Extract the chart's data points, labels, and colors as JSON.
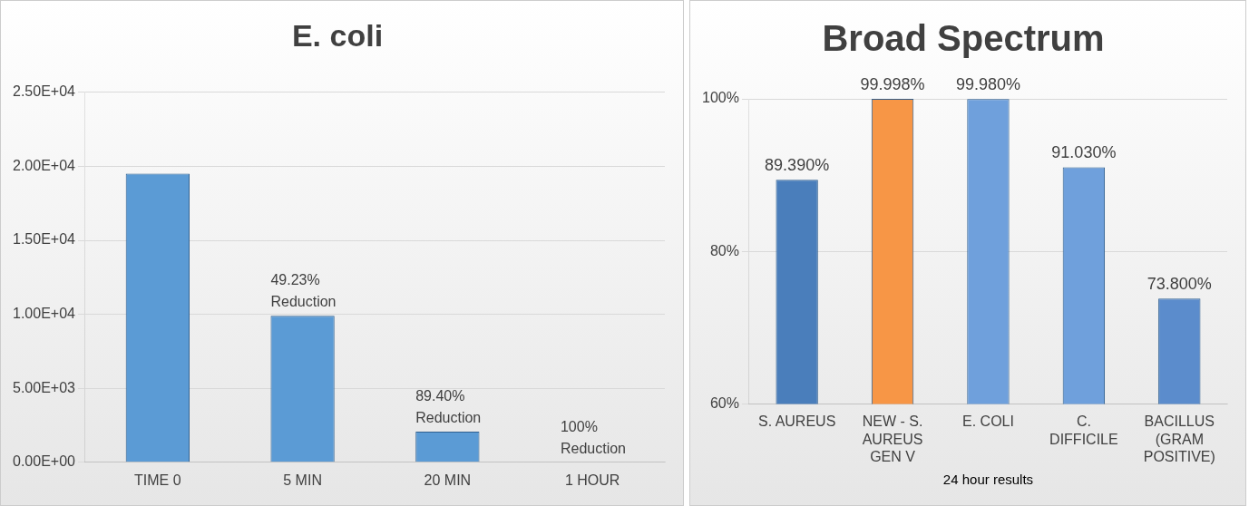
{
  "chart_data": [
    {
      "type": "bar",
      "title": "E. coli",
      "categories": [
        "TIME 0",
        "5 MIN",
        "20 MIN",
        "1 HOUR"
      ],
      "values": [
        19500,
        9900,
        2070,
        0
      ],
      "color": "#5b9bd5",
      "ylim": [
        0,
        25000
      ],
      "yticks": [
        {
          "value": 0,
          "label": "0.00E+00"
        },
        {
          "value": 5000,
          "label": "5.00E+03"
        },
        {
          "value": 10000,
          "label": "1.00E+04"
        },
        {
          "value": 15000,
          "label": "1.50E+04"
        },
        {
          "value": 20000,
          "label": "2.00E+04"
        },
        {
          "value": 25000,
          "label": "2.50E+04"
        }
      ],
      "grid": "y",
      "annotations": [
        {
          "text": "49.23% Reduction",
          "x": "5 MIN",
          "y": 9900
        },
        {
          "text": "89.40% Reduction",
          "x": "20 MIN",
          "y": 2070
        },
        {
          "text": "100% Reduction",
          "x": "1 HOUR",
          "y": 0
        }
      ]
    },
    {
      "type": "bar",
      "title": "Broad Spectrum",
      "xlabel": "24 hour results",
      "categories": [
        "S. AUREUS",
        "NEW - S. AUREUS GEN V",
        "E. COLI",
        "C. DIFFICILE",
        "BACILLUS (GRAM POSITIVE)"
      ],
      "values": [
        89.39,
        99.998,
        99.98,
        91.03,
        73.8
      ],
      "colors": [
        "#4a7ebb",
        "#f79646",
        "#6fa0dc",
        "#6fa0dc",
        "#5b8ccc"
      ],
      "ylim": [
        60,
        100
      ],
      "yticks": [
        {
          "value": 60,
          "label": "60%"
        },
        {
          "value": 80,
          "label": "80%"
        },
        {
          "value": 100,
          "label": "100%"
        }
      ],
      "grid": "y",
      "value_labels": [
        "89.390%",
        "99.998%",
        "99.980%",
        "91.030%",
        "73.800%"
      ]
    }
  ]
}
